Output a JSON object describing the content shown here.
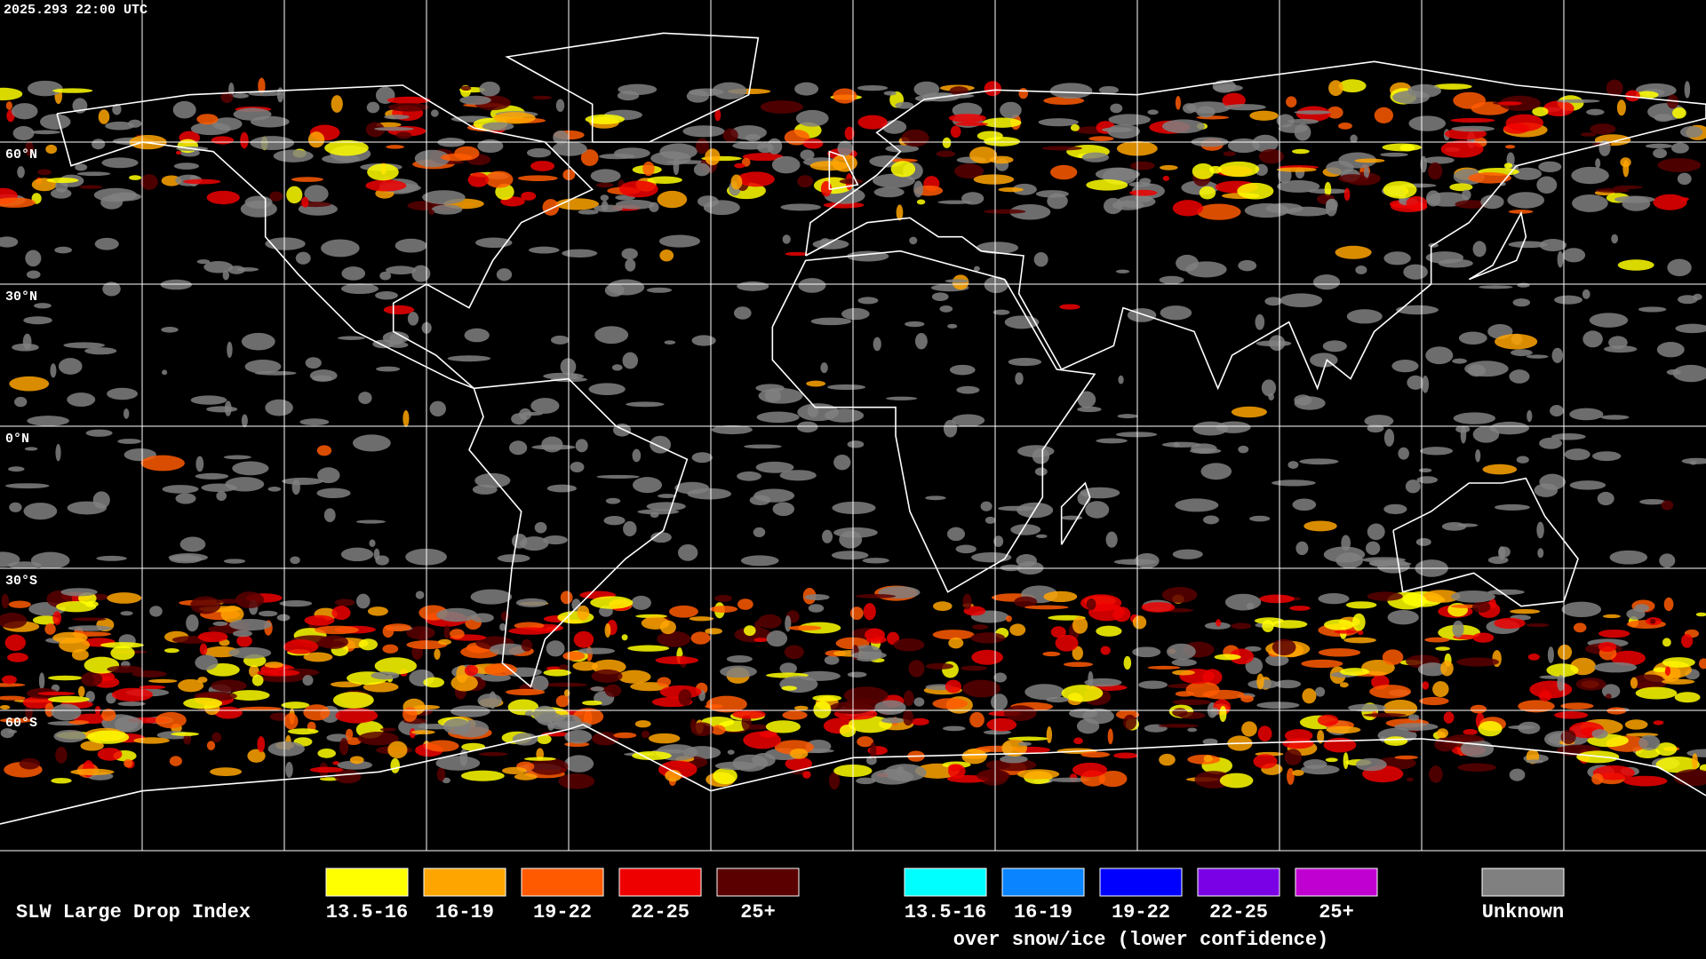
{
  "header": {
    "timestamp": "2025.293 22:00 UTC"
  },
  "map": {
    "latitude_labels": [
      "60°N",
      "30°N",
      "0°N",
      "30°S",
      "60°S"
    ]
  },
  "legend": {
    "title": "SLW Large Drop Index",
    "groups": [
      {
        "items": [
          {
            "label": "13.5-16",
            "color": "#ffff00"
          },
          {
            "label": "16-19",
            "color": "#ffa500"
          },
          {
            "label": "19-22",
            "color": "#ff5a00"
          },
          {
            "label": "22-25",
            "color": "#ee0000"
          },
          {
            "label": "25+",
            "color": "#5a0000"
          }
        ]
      },
      {
        "caption": "over snow/ice (lower confidence)",
        "items": [
          {
            "label": "13.5-16",
            "color": "#00ffff"
          },
          {
            "label": "16-19",
            "color": "#0a84ff"
          },
          {
            "label": "19-22",
            "color": "#0000ff"
          },
          {
            "label": "22-25",
            "color": "#7a00e6"
          },
          {
            "label": "25+",
            "color": "#c000d0"
          }
        ]
      },
      {
        "items": [
          {
            "label": "Unknown",
            "color": "#808080"
          }
        ]
      }
    ]
  }
}
